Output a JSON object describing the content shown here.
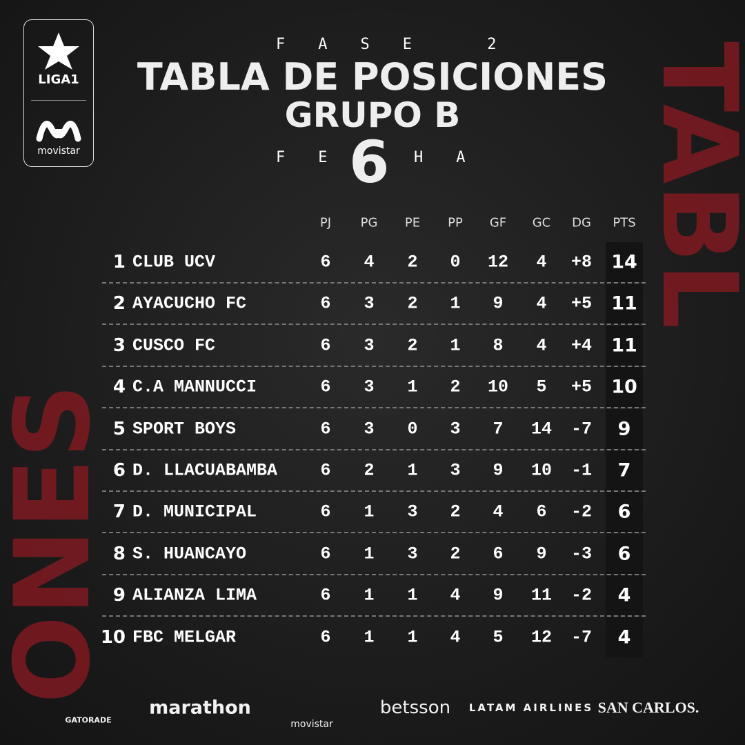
{
  "logo": {
    "league": "LIGA1",
    "sponsor": "movistar"
  },
  "header": {
    "phase": "FASE 2",
    "title": "TABLA DE POSICIONES",
    "group": "GRUPO B",
    "date_left": "FE",
    "date_number": "6",
    "date_right": "HA"
  },
  "decor": {
    "right": "TABL",
    "left": "ONES"
  },
  "table": {
    "columns": [
      "PJ",
      "PG",
      "PE",
      "PP",
      "GF",
      "GC",
      "DG",
      "PTS"
    ],
    "rows": [
      [
        "1",
        "CLUB UCV",
        "6",
        "4",
        "2",
        "0",
        "12",
        "4",
        "+8",
        "14"
      ],
      [
        "2",
        "AYACUCHO FC",
        "6",
        "3",
        "2",
        "1",
        "9",
        "4",
        "+5",
        "11"
      ],
      [
        "3",
        "CUSCO FC",
        "6",
        "3",
        "2",
        "1",
        "8",
        "4",
        "+4",
        "11"
      ],
      [
        "4",
        "C.A MANNUCCI",
        "6",
        "3",
        "1",
        "2",
        "10",
        "5",
        "+5",
        "10"
      ],
      [
        "5",
        "SPORT BOYS",
        "6",
        "3",
        "0",
        "3",
        "7",
        "14",
        "-7",
        "9"
      ],
      [
        "6",
        "D. LLACUABAMBA",
        "6",
        "2",
        "1",
        "3",
        "9",
        "10",
        "-1",
        "7"
      ],
      [
        "7",
        "D. MUNICIPAL",
        "6",
        "1",
        "3",
        "2",
        "4",
        "6",
        "-2",
        "6"
      ],
      [
        "8",
        "S. HUANCAYO",
        "6",
        "1",
        "3",
        "2",
        "6",
        "9",
        "-3",
        "6"
      ],
      [
        "9",
        "ALIANZA LIMA",
        "6",
        "1",
        "1",
        "4",
        "9",
        "11",
        "-2",
        "4"
      ],
      [
        "10",
        "FBC MELGAR",
        "6",
        "1",
        "1",
        "4",
        "5",
        "12",
        "-7",
        "4"
      ]
    ]
  },
  "sponsors": [
    "GATORADE",
    "marathon",
    "movistar",
    "betsson",
    "LATAM AIRLINES",
    "SAN CARLOS."
  ]
}
